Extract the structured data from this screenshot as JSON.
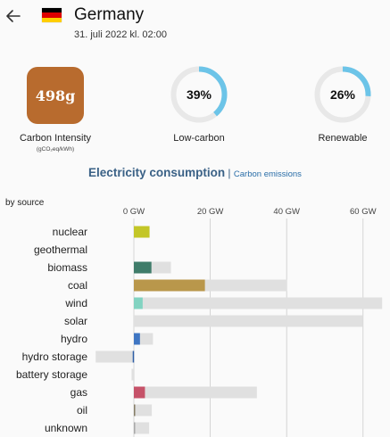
{
  "header": {
    "back_icon": "arrow-left-icon",
    "flag_colors": [
      "#000000",
      "#dd0000",
      "#ffce00"
    ],
    "country": "Germany",
    "datetime": "31. juli 2022 kl. 02:00"
  },
  "metrics": {
    "carbon_intensity": {
      "value": "498g",
      "label": "Carbon Intensity",
      "unit": "(gCO₂eq/kWh)",
      "color": "#b86b2e"
    },
    "low_carbon": {
      "value": "39%",
      "fraction": 0.39,
      "label": "Low-carbon"
    },
    "renewable": {
      "value": "26%",
      "fraction": 0.26,
      "label": "Renewable"
    },
    "gauge_color": "#6cc4e8",
    "gauge_track": "#e8e8e8"
  },
  "section": {
    "title": "Electricity consumption",
    "separator": "|",
    "alt_link": "Carbon emissions",
    "by_source": "by source"
  },
  "chart_data": {
    "type": "bar",
    "orientation": "horizontal",
    "x_ticks": [
      "0 GW",
      "20 GW",
      "40 GW",
      "60 GW"
    ],
    "x_tick_values": [
      0,
      20,
      40,
      60
    ],
    "xlim": [
      -10,
      65
    ],
    "categories": [
      "nuclear",
      "geothermal",
      "biomass",
      "coal",
      "wind",
      "solar",
      "hydro",
      "hydro storage",
      "battery storage",
      "gas",
      "oil",
      "unknown"
    ],
    "production": [
      4.1,
      0,
      4.6,
      18.6,
      2.3,
      0,
      1.6,
      -0.3,
      0,
      2.9,
      0.2,
      0.3
    ],
    "capacity": [
      4.1,
      0,
      9.7,
      40.1,
      65.0,
      60.0,
      5.0,
      -10.0,
      -0.6,
      32.2,
      4.7,
      4.0
    ],
    "colors": [
      "#c3c627",
      "#d0d0d0",
      "#3f7c6a",
      "#b9974b",
      "#82d3c1",
      "#f0d64c",
      "#3f76c3",
      "#2f5fa7",
      "#999999",
      "#c65269",
      "#867d66",
      "#a9a9a9"
    ],
    "capacity_color": "#e0e0e0",
    "grid_color": "#cccccc"
  }
}
